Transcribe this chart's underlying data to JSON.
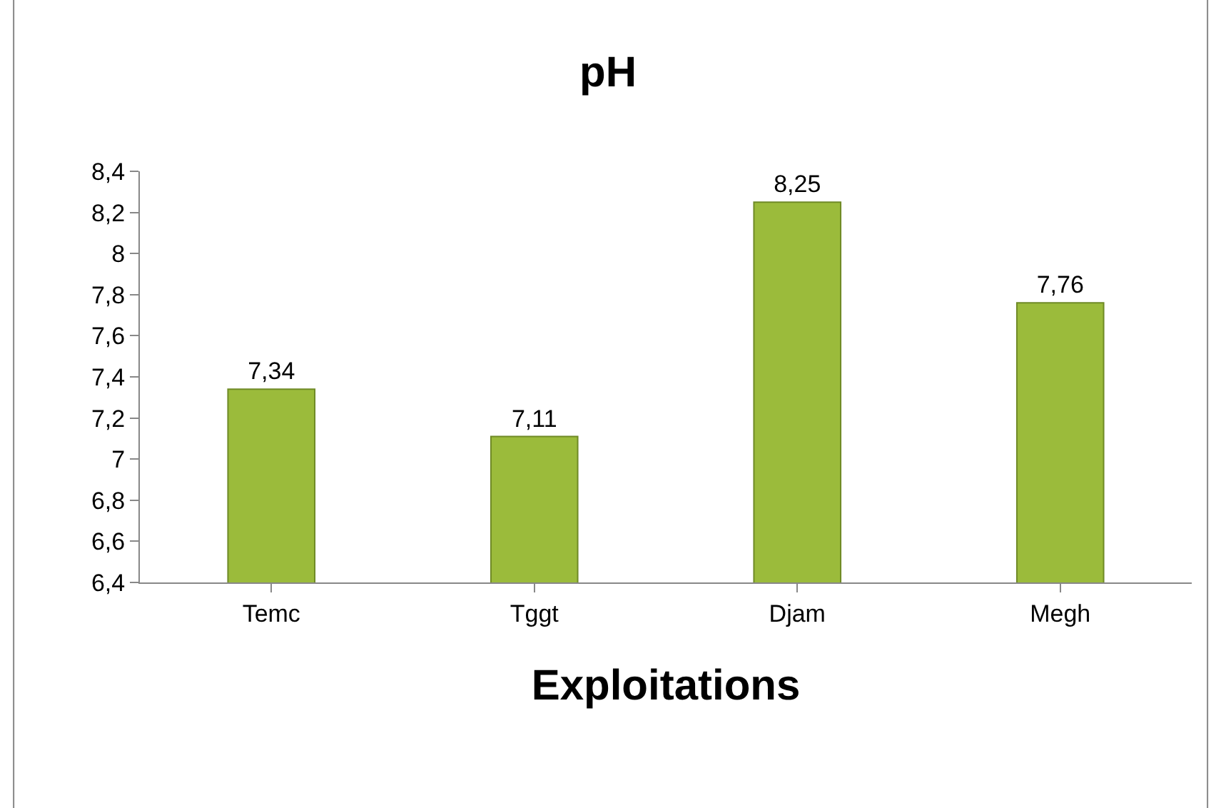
{
  "chart_data": {
    "type": "bar",
    "title": "pH",
    "xlabel": "Exploitations",
    "categories": [
      "Temc",
      "Tggt",
      "Djam",
      "Megh"
    ],
    "values": [
      7.34,
      7.11,
      8.25,
      7.76
    ],
    "value_labels": [
      "7,34",
      "7,11",
      "8,25",
      "7,76"
    ],
    "color": "#9bbb3b",
    "ylim": [
      6.4,
      8.4
    ],
    "yticks": [
      {
        "value": 6.4,
        "label": "6,4"
      },
      {
        "value": 6.6,
        "label": "6,6"
      },
      {
        "value": 6.8,
        "label": "6,8"
      },
      {
        "value": 7,
        "label": "7"
      },
      {
        "value": 7.2,
        "label": "7,2"
      },
      {
        "value": 7.4,
        "label": "7,4"
      },
      {
        "value": 7.6,
        "label": "7,6"
      },
      {
        "value": 7.8,
        "label": "7,8"
      },
      {
        "value": 8,
        "label": "8"
      },
      {
        "value": 8.2,
        "label": "8,2"
      },
      {
        "value": 8.4,
        "label": "8,4"
      }
    ],
    "grid": false,
    "legend": false
  }
}
